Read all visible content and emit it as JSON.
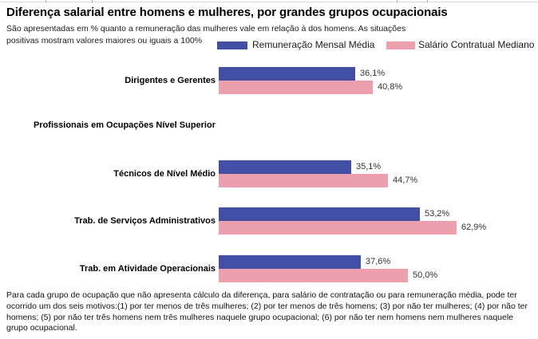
{
  "page": {
    "title": "Diferença salarial entre homens e mulheres, por grandes grupos ocupacionais",
    "subtitle": "São apresentadas em % quanto a remuneração das mulheres vale em relação à dos homens. As situações positivas mostram valores maiores ou iguais a 100%",
    "footnote": "Para cada grupo de ocupação que não apresenta cálculo da diferença, para salário de contratação ou para remuneração média, pode ter ocorrido um dos seis motivos:(1) por ter menos de três mulheres; (2) por ter menos de três homens; (3) por não ter mulheres; (4) por não ter homens; (5) por não ter três homens nem três mulheres naquele grupo ocupacional; (6) por não ter nem homens nem mulheres naquele grupo ocupacional."
  },
  "legend": {
    "position": "top-right",
    "items": [
      {
        "label": "Remuneração Mensal Média",
        "color": "#4150A5"
      },
      {
        "label": "Salário Contratual Mediano",
        "color": "#EC9FAD"
      }
    ]
  },
  "chart_data": {
    "type": "bar",
    "orientation": "horizontal",
    "title": "Diferença salarial entre homens e mulheres, por grandes grupos ocupacionais",
    "unit": "% da remuneração dos homens",
    "grid": false,
    "axis_visible": false,
    "legend_position": "top-right",
    "categories": [
      "Dirigentes e Gerentes",
      "Profissionais em Ocupações Nível Superior",
      "Técnicos de Nível Médio",
      "Trab. de Serviços Administrativos",
      "Trab. em Atividade Operacionais"
    ],
    "series": [
      {
        "name": "Remuneração Mensal Média",
        "color": "#4150A5",
        "values": [
          36.1,
          null,
          35.1,
          53.2,
          37.6
        ]
      },
      {
        "name": "Salário Contratual Mediano",
        "color": "#EC9FAD",
        "values": [
          40.8,
          null,
          44.7,
          62.9,
          50.0
        ]
      }
    ],
    "groups": [
      {
        "label": "Dirigentes e Gerentes",
        "mensal": 36.1,
        "mensal_label": "36,1%",
        "mediano": 40.8,
        "mediano_label": "40,8%"
      },
      {
        "label": "Profissionais em Ocupações Nível Superior",
        "mensal": null,
        "mensal_label": "",
        "mediano": null,
        "mediano_label": ""
      },
      {
        "label": "Técnicos de Nível Médio",
        "mensal": 35.1,
        "mensal_label": "35,1%",
        "mediano": 44.7,
        "mediano_label": "44,7%"
      },
      {
        "label": "Trab. de Serviços Administrativos",
        "mensal": 53.2,
        "mensal_label": "53,2%",
        "mediano": 62.9,
        "mediano_label": "62,9%"
      },
      {
        "label": "Trab. em Atividade Operacionais",
        "mensal": 37.6,
        "mensal_label": "37,6%",
        "mediano": 50.0,
        "mediano_label": "50,0%"
      }
    ]
  }
}
